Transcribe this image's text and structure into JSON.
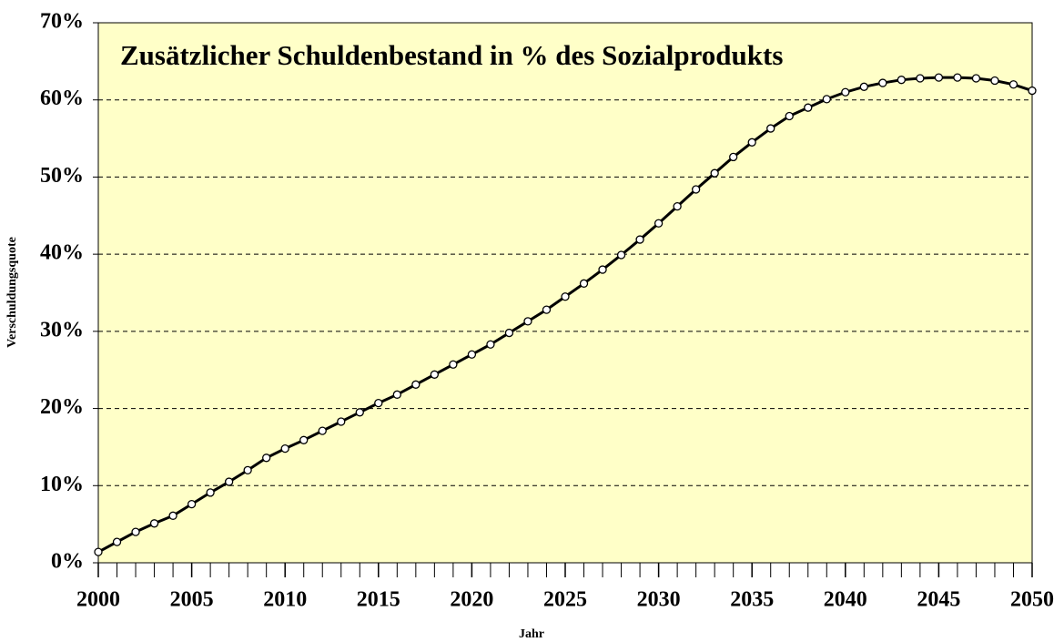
{
  "chart_data": {
    "type": "line",
    "title": "Zusätzlicher Schuldenbestand in % des Sozialprodukts",
    "xlabel": "Jahr",
    "ylabel": "Verschuldungsquote",
    "x": [
      2000,
      2001,
      2002,
      2003,
      2004,
      2005,
      2006,
      2007,
      2008,
      2009,
      2010,
      2011,
      2012,
      2013,
      2014,
      2015,
      2016,
      2017,
      2018,
      2019,
      2020,
      2021,
      2022,
      2023,
      2024,
      2025,
      2026,
      2027,
      2028,
      2029,
      2030,
      2031,
      2032,
      2033,
      2034,
      2035,
      2036,
      2037,
      2038,
      2039,
      2040,
      2041,
      2042,
      2043,
      2044,
      2045,
      2046,
      2047,
      2048,
      2049,
      2050
    ],
    "series": [
      {
        "color": "#000000",
        "values": [
          1.4,
          2.7,
          4.0,
          5.1,
          6.1,
          7.6,
          9.1,
          10.5,
          12.0,
          13.6,
          14.8,
          15.9,
          17.1,
          18.3,
          19.5,
          20.7,
          21.8,
          23.1,
          24.4,
          25.7,
          27.0,
          28.3,
          29.8,
          31.3,
          32.8,
          34.5,
          36.2,
          38.0,
          39.9,
          41.9,
          44.0,
          46.2,
          48.4,
          50.5,
          52.6,
          54.5,
          56.3,
          57.9,
          59.0,
          60.1,
          61.0,
          61.7,
          62.2,
          62.6,
          62.8,
          62.9,
          62.9,
          62.8,
          62.5,
          62.0,
          61.2
        ]
      }
    ],
    "xlim": [
      2000,
      2050
    ],
    "xticks": [
      2000,
      2005,
      2010,
      2015,
      2020,
      2025,
      2030,
      2035,
      2040,
      2045,
      2050
    ],
    "ylim": [
      0,
      70
    ],
    "yticks": [
      {
        "value": 0,
        "label": "0%"
      },
      {
        "value": 10,
        "label": "10%"
      },
      {
        "value": 20,
        "label": "20%"
      },
      {
        "value": 30,
        "label": "30%"
      },
      {
        "value": 40,
        "label": "40%"
      },
      {
        "value": 50,
        "label": "50%"
      },
      {
        "value": 60,
        "label": "60%"
      },
      {
        "value": 70,
        "label": "70%"
      }
    ],
    "grid": true,
    "background": "#ffffc8"
  }
}
